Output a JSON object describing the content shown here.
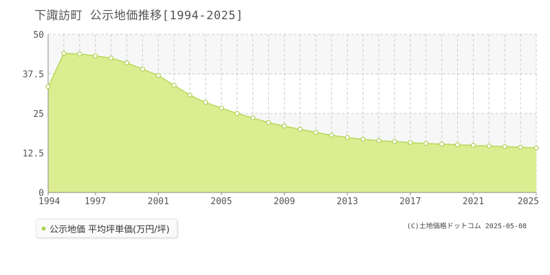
{
  "title": "下諏訪町 公示地価推移[1994-2025]",
  "legend_label": "公示地価 平均坪単価(万円/坪)",
  "credit": "(C)土地価格ドットコム 2025-05-08",
  "colors": {
    "fill": "#dcec91",
    "line": "#b7d85a",
    "point_fill": "#ffffff",
    "point_stroke": "#b0d050",
    "grid": "#cccccc",
    "band": "#f7f7f7"
  },
  "chart_data": {
    "type": "area",
    "x": [
      1994,
      1995,
      1996,
      1997,
      1998,
      1999,
      2000,
      2001,
      2002,
      2003,
      2004,
      2005,
      2006,
      2007,
      2008,
      2009,
      2010,
      2011,
      2012,
      2013,
      2014,
      2015,
      2016,
      2017,
      2018,
      2019,
      2020,
      2021,
      2022,
      2023,
      2024,
      2025
    ],
    "series": [
      {
        "values": [
          33.5,
          44.0,
          43.8,
          43.2,
          42.5,
          41.0,
          39.0,
          37.0,
          33.9,
          30.8,
          28.5,
          26.7,
          25.0,
          23.6,
          22.1,
          21.0,
          20.0,
          19.0,
          18.1,
          17.4,
          16.8,
          16.4,
          16.1,
          15.8,
          15.5,
          15.3,
          15.1,
          14.9,
          14.7,
          14.5,
          14.3,
          14.1
        ]
      }
    ],
    "x_ticks": [
      "1994",
      "1997",
      "2001",
      "2005",
      "2009",
      "2013",
      "2017",
      "2021",
      "2025"
    ],
    "y_ticks": [
      "0",
      "12.5",
      "25",
      "37.5",
      "50"
    ],
    "ylim": [
      0,
      50
    ],
    "xlim": [
      1994,
      2025
    ],
    "grid": true
  }
}
